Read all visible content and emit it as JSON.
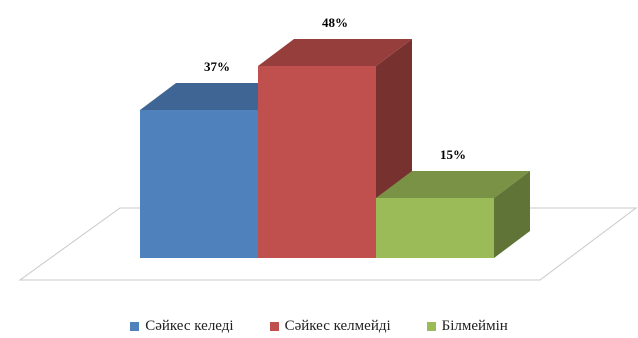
{
  "chart_data": {
    "type": "bar",
    "style": "3d",
    "categories": [
      "Сәйкес келеді",
      "Сәйкес келмейді",
      "Білмеймін"
    ],
    "values": [
      37,
      48,
      15
    ],
    "data_labels": [
      "37%",
      "48%",
      "15%"
    ],
    "unit": "%",
    "colors": [
      "#4F81BD",
      "#C0504D",
      "#9BBB59"
    ],
    "legend": {
      "position": "bottom",
      "entries": [
        "Сәйкес келеді",
        "Сәйкес келмейді",
        "Білмеймін"
      ]
    },
    "grid": false,
    "axes_visible": false
  }
}
